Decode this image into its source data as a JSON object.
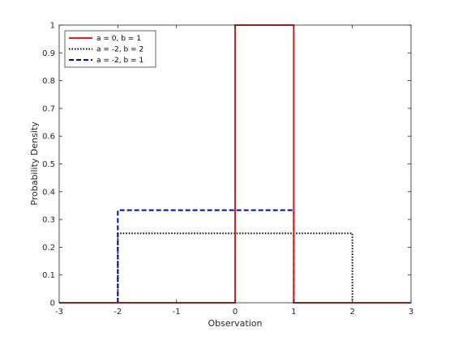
{
  "chart_data": {
    "type": "line",
    "title": "",
    "xlabel": "Observation",
    "ylabel": "Probability Density",
    "xlim": [
      -3,
      3
    ],
    "ylim": [
      0,
      1
    ],
    "x_ticks": [
      -3,
      -2,
      -1,
      0,
      1,
      2,
      3
    ],
    "x_tick_labels": [
      "-3",
      "-2",
      "-1",
      "0",
      "1",
      "2",
      "3"
    ],
    "y_ticks": [
      0,
      0.1,
      0.2,
      0.3,
      0.4,
      0.5,
      0.6,
      0.7,
      0.8,
      0.9,
      1
    ],
    "y_tick_labels": [
      "0",
      "0.1",
      "0.2",
      "0.3",
      "0.4",
      "0.5",
      "0.6",
      "0.7",
      "0.8",
      "0.9",
      "1"
    ],
    "grid": false,
    "legend_position": "top-left",
    "series": [
      {
        "name": "a = 0, b = 1",
        "color": "#e41a1c",
        "style": "solid",
        "x": [
          -3,
          0,
          0,
          0,
          1,
          1,
          1,
          3
        ],
        "y": [
          0,
          0,
          0.5,
          1,
          1,
          0.5,
          0,
          0
        ]
      },
      {
        "name": "a = -2, b = 2",
        "color": "#000000",
        "style": "dotted",
        "x": [
          -3,
          -2,
          -2,
          2,
          2,
          3
        ],
        "y": [
          0,
          0,
          0.25,
          0.25,
          0,
          0
        ]
      },
      {
        "name": "a = -2, b = 1",
        "color": "#0000cc",
        "style": "dashed",
        "x": [
          -3,
          -2,
          -2,
          1,
          1,
          3
        ],
        "y": [
          0,
          0,
          0.3333,
          0.3333,
          0,
          0
        ]
      }
    ]
  }
}
